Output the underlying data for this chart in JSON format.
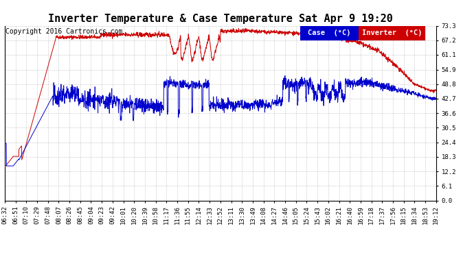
{
  "title": "Inverter Temperature & Case Temperature Sat Apr 9 19:20",
  "copyright": "Copyright 2016 Cartronics.com",
  "legend_case_label": "Case  (°C)",
  "legend_inverter_label": "Inverter  (°C)",
  "case_color": "#0000cc",
  "inverter_color": "#cc0000",
  "background_color": "#ffffff",
  "plot_bg_color": "#ffffff",
  "grid_color": "#999999",
  "yticks": [
    0.0,
    6.1,
    12.2,
    18.3,
    24.4,
    30.5,
    36.6,
    42.7,
    48.8,
    54.9,
    61.1,
    67.2,
    73.3
  ],
  "ylim": [
    0.0,
    73.3
  ],
  "title_fontsize": 11,
  "tick_fontsize": 6.5,
  "legend_fontsize": 7.5,
  "copyright_fontsize": 7,
  "xtick_labels": [
    "06:32",
    "06:51",
    "07:10",
    "07:29",
    "07:48",
    "08:07",
    "08:26",
    "08:45",
    "09:04",
    "09:23",
    "09:42",
    "10:01",
    "10:20",
    "10:39",
    "10:58",
    "11:17",
    "11:36",
    "11:55",
    "12:14",
    "12:33",
    "12:52",
    "13:11",
    "13:30",
    "13:49",
    "14:08",
    "14:27",
    "14:46",
    "15:05",
    "15:24",
    "15:43",
    "16:02",
    "16:21",
    "16:40",
    "16:59",
    "17:18",
    "17:37",
    "17:56",
    "18:15",
    "18:34",
    "18:53",
    "19:12"
  ]
}
